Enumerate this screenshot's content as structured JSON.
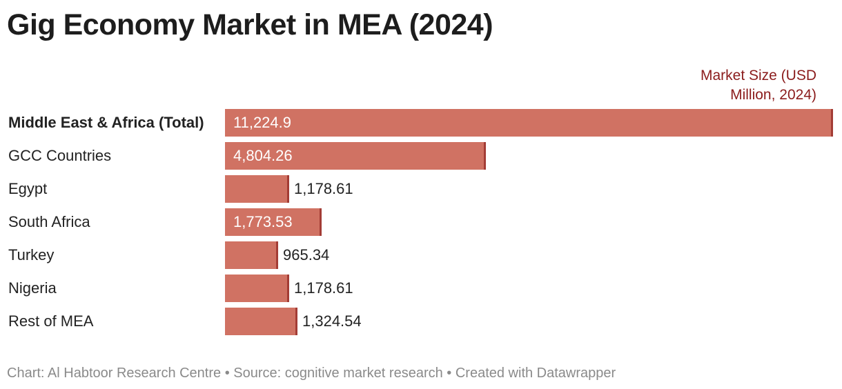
{
  "chart_data": {
    "type": "bar",
    "orientation": "horizontal",
    "title": "Gig Economy Market in MEA (2024)",
    "column_header": "Market Size (USD Million, 2024)",
    "column_header_lines": [
      "Market Size (USD",
      "Million, 2024)"
    ],
    "categories": [
      "Middle East & Africa (Total)",
      "GCC Countries",
      "Egypt",
      "South Africa",
      "Turkey",
      "Nigeria",
      "Rest of MEA"
    ],
    "values": [
      11224.9,
      4804.26,
      1178.61,
      1773.53,
      965.34,
      1178.61,
      1324.54
    ],
    "value_labels": [
      "11,224.9",
      "4,804.26",
      "1,178.61",
      "1,773.53",
      "965.34",
      "1,178.61",
      "1,324.54"
    ],
    "bold_categories": [
      "Middle East & Africa (Total)"
    ],
    "xlim": [
      0,
      11224.9
    ],
    "grid": false,
    "legend": "none",
    "bar_color": "#d07263",
    "bar_end_color": "#a33c35",
    "header_color": "#8b1c1c"
  },
  "footer": "Chart: Al Habtoor Research Centre • Source: cognitive market research • Created with Datawrapper"
}
